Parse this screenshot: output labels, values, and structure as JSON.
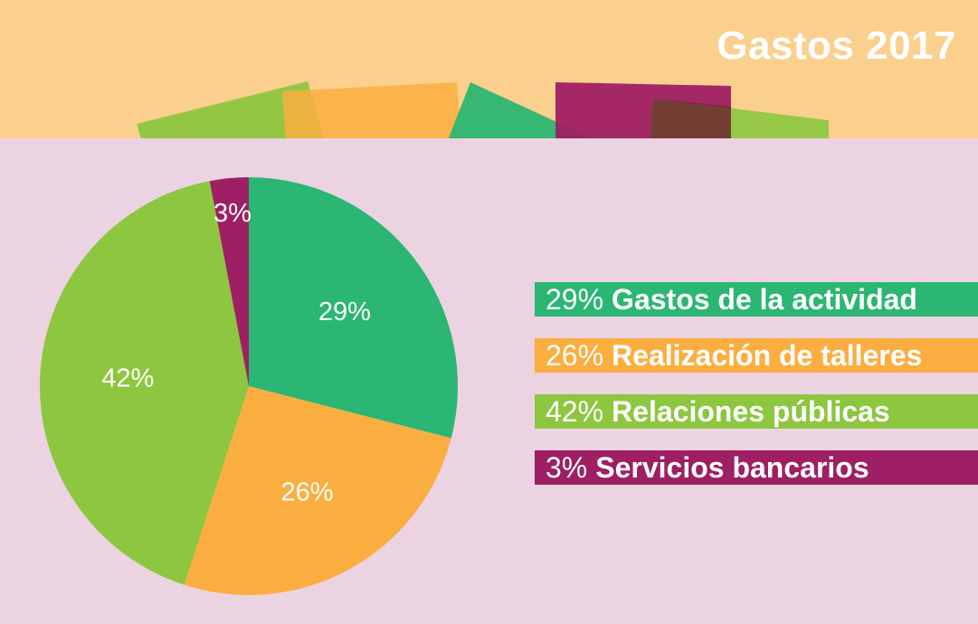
{
  "colors": {
    "header_bg": "#fbcf8d",
    "page_bg": "#ecd3e2"
  },
  "chart_data": {
    "type": "pie",
    "title": "Gastos 2017",
    "slices": [
      {
        "label": "Gastos de la actividad",
        "value": 29,
        "value_label": "29%",
        "color": "#2bb673"
      },
      {
        "label": "Realización de talleres",
        "value": 26,
        "value_label": "26%",
        "color": "#fbae40"
      },
      {
        "label": "Relaciones públicas",
        "value": 42,
        "value_label": "42%",
        "color": "#8dc63f"
      },
      {
        "label": "Servicios bancarios",
        "value": 3,
        "value_label": "3%",
        "color": "#9e1f63"
      }
    ],
    "legend_position": "right",
    "start_angle": "top",
    "direction": "clockwise"
  }
}
